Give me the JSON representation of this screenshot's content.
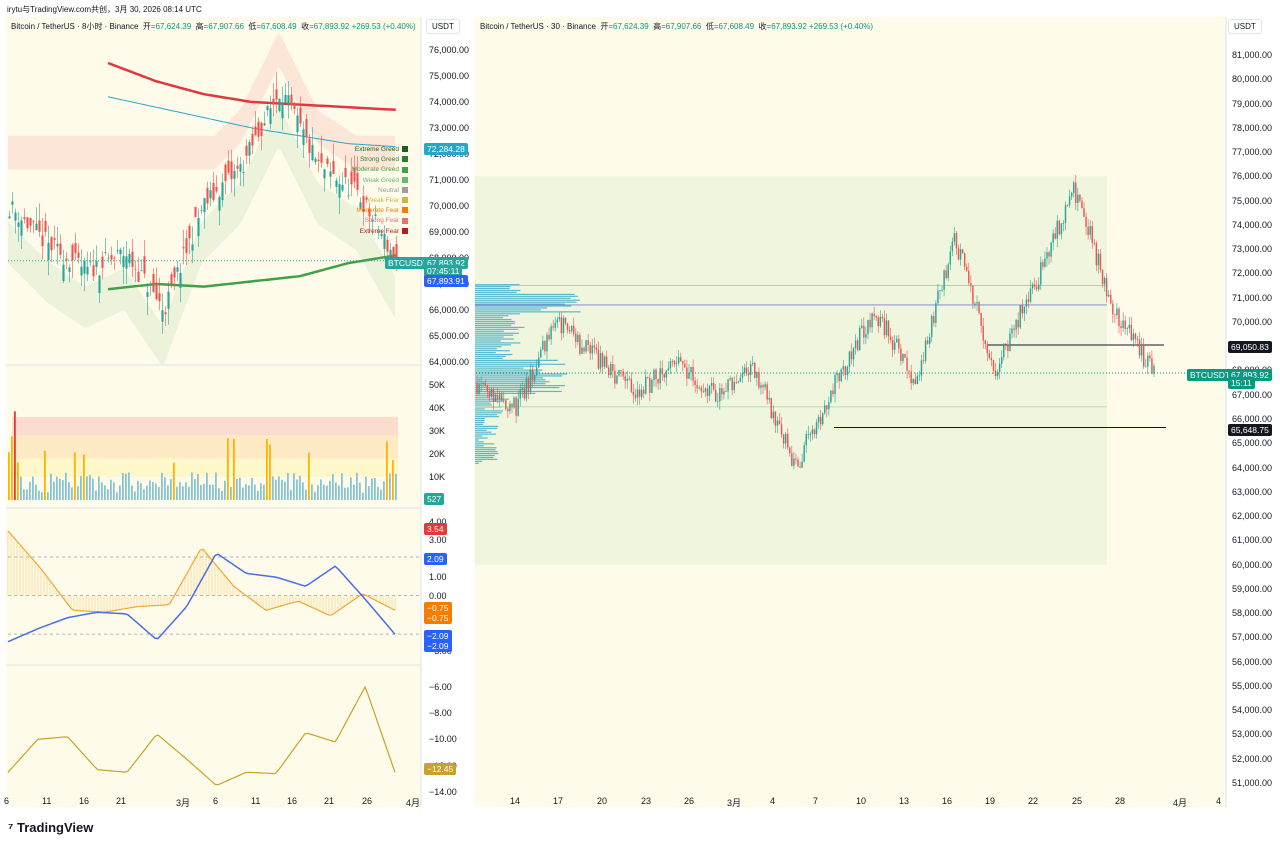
{
  "header": {
    "attribution": "irytu与TradingView.com共创，3月 30, 2026 08:14 UTC"
  },
  "brand": {
    "logo_text": "TradingView"
  },
  "left": {
    "title": "Bitcoin / TetherUS · 8小时 · Binance",
    "ohlc": {
      "o_label": "开",
      "o": "=67,624.39",
      "h_label": "高",
      "h": "=67,907.66",
      "l_label": "低",
      "l": "=67,608.49",
      "c_label": "收",
      "c": "=67,893.92",
      "chg": "+269.53 (+0.40%)"
    },
    "currency": "USDT",
    "tags": {
      "sma": "72,284.28",
      "symbol": "BTCUSDT",
      "price": "67,893.92",
      "countdown": "07:45:11",
      "last": "67,893.91",
      "volume": "527",
      "osc_red": "3.54",
      "osc_blue1": "2.09",
      "osc_orange1": "−0.75",
      "osc_orange2": "−0.75",
      "osc_blue2": "−2.09",
      "osc_blue3": "−2.09",
      "pane4": "−12.45"
    },
    "fear_greed": [
      "Extreme Greed",
      "Strong Greed",
      "Moderate Greed",
      "Weak Greed",
      "Neutral",
      "Weak Fear",
      "Moderate Fear",
      "Strong Fear",
      "Extreme Fear"
    ],
    "fear_greed_colors": [
      "#1b5e20",
      "#2e7d32",
      "#43a047",
      "#66bb6a",
      "#9e9e9e",
      "#d4b24c",
      "#f57c00",
      "#e57373",
      "#b71c1c"
    ],
    "price_ticks": [
      "76,000.00",
      "75,000.00",
      "74,000.00",
      "73,000.00",
      "72,000.00",
      "71,000.00",
      "70,000.00",
      "69,000.00",
      "68,000.00",
      "67,000.00",
      "66,000.00",
      "65,000.00",
      "64,000.00"
    ],
    "volume_ticks": [
      "50K",
      "40K",
      "30K",
      "20K",
      "10K"
    ],
    "osc_ticks": [
      "4.00",
      "3.00",
      "1.00",
      "0.00",
      "−1.00",
      "−3.00"
    ],
    "pane4_ticks": [
      "−6.00",
      "−8.00",
      "−10.00",
      "−12.00",
      "−14.00"
    ],
    "time_ticks": [
      "6",
      "11",
      "16",
      "21",
      "3月",
      "6",
      "11",
      "16",
      "21",
      "26",
      "4月"
    ]
  },
  "right": {
    "title": "Bitcoin / TetherUS · 30 · Binance",
    "ohlc": {
      "o_label": "开",
      "o": "=67,624.39",
      "h_label": "高",
      "h": "=67,907.66",
      "l_label": "低",
      "l": "=67,608.49",
      "c_label": "收",
      "c": "=67,893.92",
      "chg": "+269.53 (+0.40%)"
    },
    "currency": "USDT",
    "tags": {
      "level_high": "69,050.83",
      "symbol": "BTCUSDT",
      "price": "67,893.92",
      "countdown": "15:11",
      "level_low": "65,648.75"
    },
    "price_ticks": [
      "81,000.00",
      "80,000.00",
      "79,000.00",
      "78,000.00",
      "77,000.00",
      "76,000.00",
      "75,000.00",
      "74,000.00",
      "73,000.00",
      "72,000.00",
      "71,000.00",
      "70,000.00",
      "69,000.00",
      "68,000.00",
      "67,000.00",
      "66,000.00",
      "65,000.00",
      "64,000.00",
      "63,000.00",
      "62,000.00",
      "61,000.00",
      "60,000.00",
      "59,000.00",
      "58,000.00",
      "57,000.00",
      "56,000.00",
      "55,000.00",
      "54,000.00",
      "53,000.00",
      "52,000.00",
      "51,000.00"
    ],
    "time_ticks": [
      "14",
      "17",
      "20",
      "23",
      "26",
      "3月",
      "4",
      "7",
      "10",
      "13",
      "16",
      "19",
      "22",
      "25",
      "28",
      "4月",
      "4"
    ]
  },
  "chart_data": [
    {
      "type": "line",
      "title": "Bitcoin / TetherUS · 8小时 · Binance",
      "xlabel": "",
      "ylabel": "USDT",
      "ylim": [
        64000,
        76500
      ],
      "x": [
        "2/6",
        "2/11",
        "2/16",
        "2/21",
        "3/1",
        "3/6",
        "3/11",
        "3/16",
        "3/21",
        "3/26",
        "3/30"
      ],
      "series": [
        {
          "name": "",
          "values": [
            70000,
            68500,
            67500,
            68200,
            66000,
            70000,
            71500,
            74500,
            71500,
            70500,
            67894
          ]
        }
      ]
    },
    {
      "type": "line",
      "title": "Bitcoin / TetherUS · 30 · Binance",
      "xlabel": "",
      "ylabel": "USDT",
      "ylim": [
        50500,
        81500
      ],
      "x": [
        "3/13",
        "3/14",
        "3/15",
        "3/16",
        "3/17",
        "3/18",
        "3/19",
        "3/20",
        "3/21",
        "3/22",
        "3/23",
        "3/24",
        "3/25",
        "3/26",
        "3/27",
        "3/28",
        "3/29",
        "3/30"
      ],
      "series": [
        {
          "name": "",
          "values": [
            67500,
            66500,
            70000,
            68500,
            67000,
            68500,
            67000,
            68000,
            64000,
            67500,
            70500,
            67500,
            73500,
            68000,
            71500,
            75500,
            70500,
            67894
          ]
        }
      ],
      "levels": [
        69050.83,
        65648.75
      ]
    }
  ]
}
